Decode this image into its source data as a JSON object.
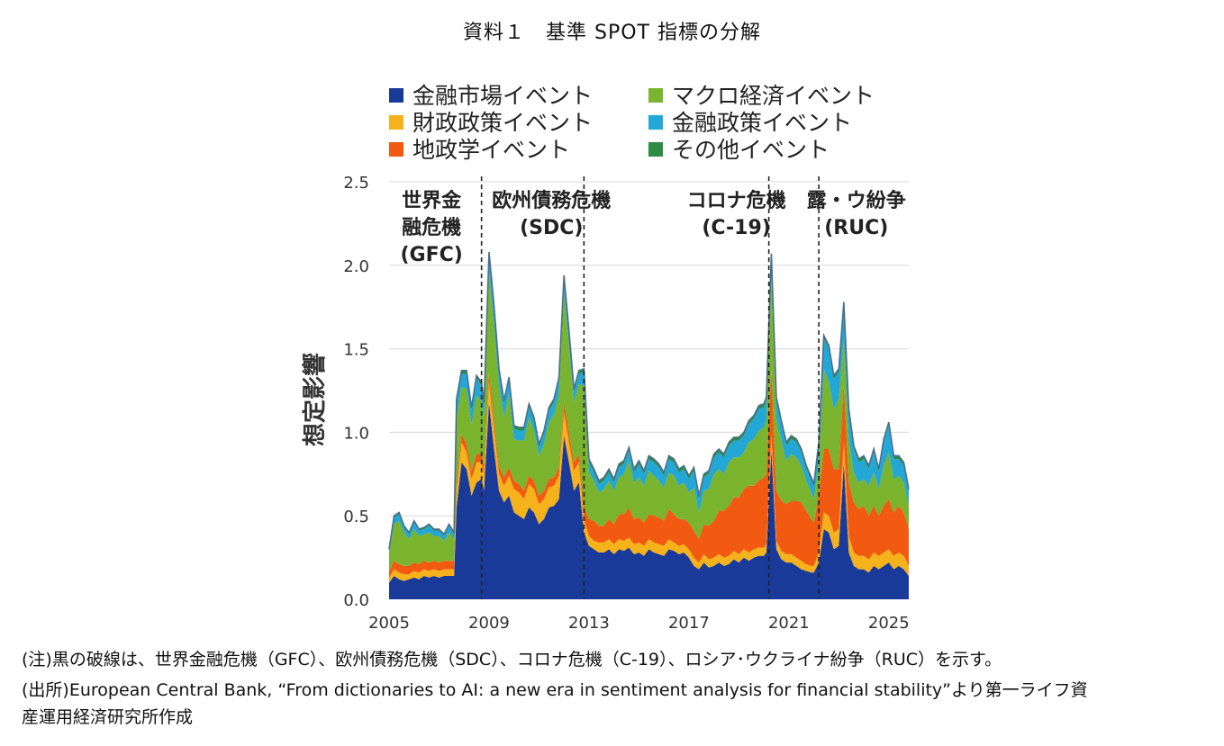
{
  "title": "資料１　基準 SPOT 指標の分解",
  "chart_data": {
    "type": "area",
    "stacked": true,
    "ylabel": "想定影響",
    "xlabel": "",
    "ylim": [
      0,
      2.5
    ],
    "yticks": [
      "0.0",
      "0.5",
      "1.0",
      "1.5",
      "2.0",
      "2.5"
    ],
    "xlim": [
      2005,
      2025.8
    ],
    "xticks": [
      "2005",
      "2009",
      "2013",
      "2017",
      "2021",
      "2025"
    ],
    "grid": true,
    "legend_position": "top",
    "x": [
      2005.0,
      2005.2,
      2005.4,
      2005.6,
      2005.8,
      2006.0,
      2006.2,
      2006.4,
      2006.6,
      2006.8,
      2007.0,
      2007.2,
      2007.4,
      2007.6,
      2007.7,
      2007.9,
      2008.1,
      2008.3,
      2008.5,
      2008.7,
      2008.8,
      2009.0,
      2009.2,
      2009.4,
      2009.6,
      2009.8,
      2010.0,
      2010.2,
      2010.4,
      2010.6,
      2010.8,
      2011.0,
      2011.2,
      2011.4,
      2011.6,
      2011.8,
      2012.0,
      2012.2,
      2012.4,
      2012.6,
      2012.8,
      2013.0,
      2013.2,
      2013.4,
      2013.6,
      2013.8,
      2014.0,
      2014.2,
      2014.4,
      2014.6,
      2014.8,
      2015.0,
      2015.2,
      2015.4,
      2015.6,
      2015.8,
      2016.0,
      2016.2,
      2016.4,
      2016.6,
      2016.8,
      2017.0,
      2017.2,
      2017.4,
      2017.6,
      2017.8,
      2018.0,
      2018.2,
      2018.4,
      2018.6,
      2018.8,
      2019.0,
      2019.2,
      2019.4,
      2019.6,
      2019.8,
      2020.0,
      2020.1,
      2020.3,
      2020.5,
      2020.7,
      2020.9,
      2021.1,
      2021.3,
      2021.5,
      2021.7,
      2021.9,
      2022.0,
      2022.2,
      2022.4,
      2022.6,
      2022.8,
      2023.0,
      2023.2,
      2023.4,
      2023.6,
      2023.8,
      2024.0,
      2024.2,
      2024.4,
      2024.6,
      2024.8,
      2025.0,
      2025.2,
      2025.4,
      2025.6,
      2025.8
    ],
    "series": [
      {
        "name": "金融市場イベント",
        "color": "#1a3a9a",
        "values": [
          0.1,
          0.14,
          0.12,
          0.11,
          0.12,
          0.13,
          0.12,
          0.14,
          0.13,
          0.14,
          0.13,
          0.14,
          0.14,
          0.14,
          0.55,
          0.82,
          0.78,
          0.62,
          0.7,
          0.72,
          0.65,
          1.18,
          0.9,
          0.65,
          0.58,
          0.62,
          0.52,
          0.5,
          0.48,
          0.55,
          0.52,
          0.45,
          0.48,
          0.55,
          0.56,
          0.6,
          0.98,
          0.82,
          0.65,
          0.7,
          0.4,
          0.32,
          0.3,
          0.28,
          0.28,
          0.3,
          0.27,
          0.3,
          0.29,
          0.31,
          0.27,
          0.28,
          0.26,
          0.3,
          0.28,
          0.27,
          0.26,
          0.3,
          0.29,
          0.27,
          0.28,
          0.25,
          0.2,
          0.18,
          0.22,
          0.19,
          0.2,
          0.22,
          0.2,
          0.21,
          0.24,
          0.22,
          0.25,
          0.23,
          0.25,
          0.26,
          0.26,
          0.28,
          0.9,
          0.3,
          0.24,
          0.22,
          0.22,
          0.2,
          0.18,
          0.17,
          0.16,
          0.16,
          0.22,
          0.42,
          0.4,
          0.3,
          0.32,
          0.82,
          0.28,
          0.2,
          0.18,
          0.18,
          0.16,
          0.2,
          0.18,
          0.2,
          0.22,
          0.18,
          0.2,
          0.18,
          0.14
        ]
      },
      {
        "name": "財政政策イベント",
        "color": "#f5b21a",
        "values": [
          0.03,
          0.04,
          0.04,
          0.04,
          0.03,
          0.04,
          0.04,
          0.04,
          0.04,
          0.04,
          0.04,
          0.04,
          0.04,
          0.04,
          0.1,
          0.12,
          0.1,
          0.1,
          0.12,
          0.1,
          0.1,
          0.12,
          0.12,
          0.1,
          0.1,
          0.12,
          0.14,
          0.14,
          0.12,
          0.14,
          0.14,
          0.12,
          0.12,
          0.12,
          0.12,
          0.14,
          0.14,
          0.12,
          0.12,
          0.12,
          0.08,
          0.06,
          0.05,
          0.06,
          0.06,
          0.06,
          0.06,
          0.06,
          0.06,
          0.06,
          0.06,
          0.06,
          0.06,
          0.06,
          0.06,
          0.06,
          0.06,
          0.06,
          0.05,
          0.05,
          0.05,
          0.05,
          0.05,
          0.04,
          0.05,
          0.05,
          0.05,
          0.05,
          0.05,
          0.05,
          0.05,
          0.05,
          0.05,
          0.05,
          0.05,
          0.05,
          0.05,
          0.05,
          0.08,
          0.05,
          0.05,
          0.05,
          0.05,
          0.05,
          0.05,
          0.04,
          0.04,
          0.04,
          0.06,
          0.1,
          0.1,
          0.1,
          0.1,
          0.12,
          0.1,
          0.08,
          0.08,
          0.08,
          0.08,
          0.08,
          0.08,
          0.08,
          0.08,
          0.08,
          0.08,
          0.08,
          0.06
        ]
      },
      {
        "name": "地政学イベント",
        "color": "#f25a12",
        "values": [
          0.04,
          0.05,
          0.05,
          0.05,
          0.05,
          0.05,
          0.05,
          0.05,
          0.05,
          0.05,
          0.05,
          0.05,
          0.05,
          0.05,
          0.05,
          0.05,
          0.05,
          0.05,
          0.05,
          0.05,
          0.05,
          0.06,
          0.06,
          0.05,
          0.05,
          0.05,
          0.05,
          0.05,
          0.05,
          0.05,
          0.05,
          0.05,
          0.05,
          0.05,
          0.05,
          0.05,
          0.06,
          0.06,
          0.05,
          0.05,
          0.08,
          0.1,
          0.12,
          0.1,
          0.1,
          0.12,
          0.12,
          0.15,
          0.16,
          0.18,
          0.15,
          0.15,
          0.14,
          0.15,
          0.16,
          0.16,
          0.15,
          0.18,
          0.17,
          0.16,
          0.15,
          0.16,
          0.16,
          0.14,
          0.18,
          0.2,
          0.22,
          0.26,
          0.28,
          0.3,
          0.32,
          0.34,
          0.36,
          0.4,
          0.38,
          0.4,
          0.42,
          0.42,
          0.4,
          0.3,
          0.3,
          0.3,
          0.32,
          0.34,
          0.35,
          0.32,
          0.28,
          0.26,
          0.34,
          0.38,
          0.4,
          0.38,
          0.36,
          0.34,
          0.32,
          0.3,
          0.28,
          0.3,
          0.26,
          0.28,
          0.24,
          0.28,
          0.3,
          0.26,
          0.28,
          0.26,
          0.22
        ]
      },
      {
        "name": "マクロ経済イベント",
        "color": "#7ab32e",
        "values": [
          0.1,
          0.22,
          0.26,
          0.2,
          0.16,
          0.2,
          0.17,
          0.16,
          0.18,
          0.15,
          0.16,
          0.12,
          0.17,
          0.13,
          0.38,
          0.28,
          0.33,
          0.28,
          0.35,
          0.32,
          0.28,
          0.6,
          0.56,
          0.48,
          0.36,
          0.44,
          0.25,
          0.26,
          0.3,
          0.35,
          0.3,
          0.24,
          0.28,
          0.34,
          0.38,
          0.44,
          0.66,
          0.52,
          0.36,
          0.42,
          0.72,
          0.28,
          0.24,
          0.2,
          0.22,
          0.23,
          0.2,
          0.22,
          0.24,
          0.28,
          0.22,
          0.24,
          0.22,
          0.26,
          0.24,
          0.22,
          0.2,
          0.22,
          0.23,
          0.2,
          0.22,
          0.18,
          0.26,
          0.16,
          0.2,
          0.22,
          0.28,
          0.25,
          0.22,
          0.26,
          0.24,
          0.24,
          0.22,
          0.26,
          0.28,
          0.3,
          0.3,
          0.32,
          0.55,
          0.44,
          0.36,
          0.26,
          0.28,
          0.26,
          0.22,
          0.18,
          0.16,
          0.14,
          0.2,
          0.48,
          0.4,
          0.36,
          0.42,
          0.28,
          0.26,
          0.18,
          0.16,
          0.16,
          0.18,
          0.2,
          0.16,
          0.24,
          0.28,
          0.2,
          0.18,
          0.18,
          0.14
        ]
      },
      {
        "name": "金融政策イベント",
        "color": "#22a7d6",
        "values": [
          0.02,
          0.04,
          0.04,
          0.03,
          0.03,
          0.04,
          0.03,
          0.03,
          0.04,
          0.03,
          0.03,
          0.03,
          0.04,
          0.03,
          0.1,
          0.08,
          0.09,
          0.08,
          0.1,
          0.09,
          0.08,
          0.1,
          0.1,
          0.08,
          0.08,
          0.08,
          0.06,
          0.06,
          0.06,
          0.06,
          0.06,
          0.05,
          0.06,
          0.07,
          0.07,
          0.08,
          0.08,
          0.07,
          0.06,
          0.06,
          0.08,
          0.06,
          0.05,
          0.05,
          0.05,
          0.05,
          0.05,
          0.06,
          0.06,
          0.06,
          0.06,
          0.08,
          0.07,
          0.07,
          0.08,
          0.08,
          0.07,
          0.08,
          0.08,
          0.08,
          0.08,
          0.08,
          0.1,
          0.08,
          0.08,
          0.09,
          0.1,
          0.1,
          0.1,
          0.1,
          0.1,
          0.1,
          0.1,
          0.11,
          0.12,
          0.13,
          0.12,
          0.12,
          0.12,
          0.1,
          0.1,
          0.09,
          0.09,
          0.09,
          0.08,
          0.07,
          0.07,
          0.07,
          0.1,
          0.18,
          0.2,
          0.18,
          0.16,
          0.2,
          0.16,
          0.14,
          0.12,
          0.12,
          0.1,
          0.12,
          0.1,
          0.14,
          0.16,
          0.12,
          0.1,
          0.1,
          0.08
        ]
      },
      {
        "name": "その他イベント",
        "color": "#2e8a47",
        "values": [
          0.01,
          0.01,
          0.01,
          0.01,
          0.01,
          0.01,
          0.01,
          0.01,
          0.01,
          0.01,
          0.01,
          0.01,
          0.01,
          0.01,
          0.02,
          0.02,
          0.02,
          0.02,
          0.02,
          0.02,
          0.02,
          0.02,
          0.02,
          0.02,
          0.02,
          0.02,
          0.02,
          0.02,
          0.02,
          0.02,
          0.02,
          0.02,
          0.02,
          0.02,
          0.02,
          0.02,
          0.02,
          0.02,
          0.02,
          0.02,
          0.02,
          0.02,
          0.02,
          0.02,
          0.02,
          0.02,
          0.02,
          0.02,
          0.02,
          0.02,
          0.02,
          0.02,
          0.02,
          0.02,
          0.02,
          0.02,
          0.02,
          0.02,
          0.02,
          0.02,
          0.02,
          0.02,
          0.02,
          0.02,
          0.02,
          0.02,
          0.02,
          0.02,
          0.02,
          0.02,
          0.02,
          0.02,
          0.02,
          0.02,
          0.02,
          0.02,
          0.02,
          0.02,
          0.02,
          0.02,
          0.02,
          0.02,
          0.02,
          0.02,
          0.02,
          0.02,
          0.02,
          0.02,
          0.02,
          0.02,
          0.02,
          0.02,
          0.02,
          0.02,
          0.02,
          0.02,
          0.02,
          0.02,
          0.02,
          0.02,
          0.02,
          0.02,
          0.02,
          0.02,
          0.02,
          0.02,
          0.02
        ]
      }
    ],
    "events": [
      {
        "label": [
          "世界金",
          "融危機",
          "(GFC)"
        ],
        "x": 2008.7
      },
      {
        "label": [
          "欧州債務危機",
          "(SDC)"
        ],
        "x": 2012.8
      },
      {
        "label": [
          "コロナ危機",
          "(C-19)"
        ],
        "x": 2020.2
      },
      {
        "label": [
          "露・ウ紛争",
          "(RUC)"
        ],
        "x": 2022.2
      }
    ]
  },
  "notes": {
    "note1": "(注)黒の破線は、世界金融危機（GFC）、欧州債務危機（SDC）、コロナ危機（C-19）、ロシア･ウクライナ紛争（RUC）を示す。",
    "note2_line1": "(出所)European Central Bank, “From dictionaries to AI: a new era in sentiment analysis for financial stability”より第一ライフ資",
    "note2_line2": "産運用経済研究所作成"
  }
}
